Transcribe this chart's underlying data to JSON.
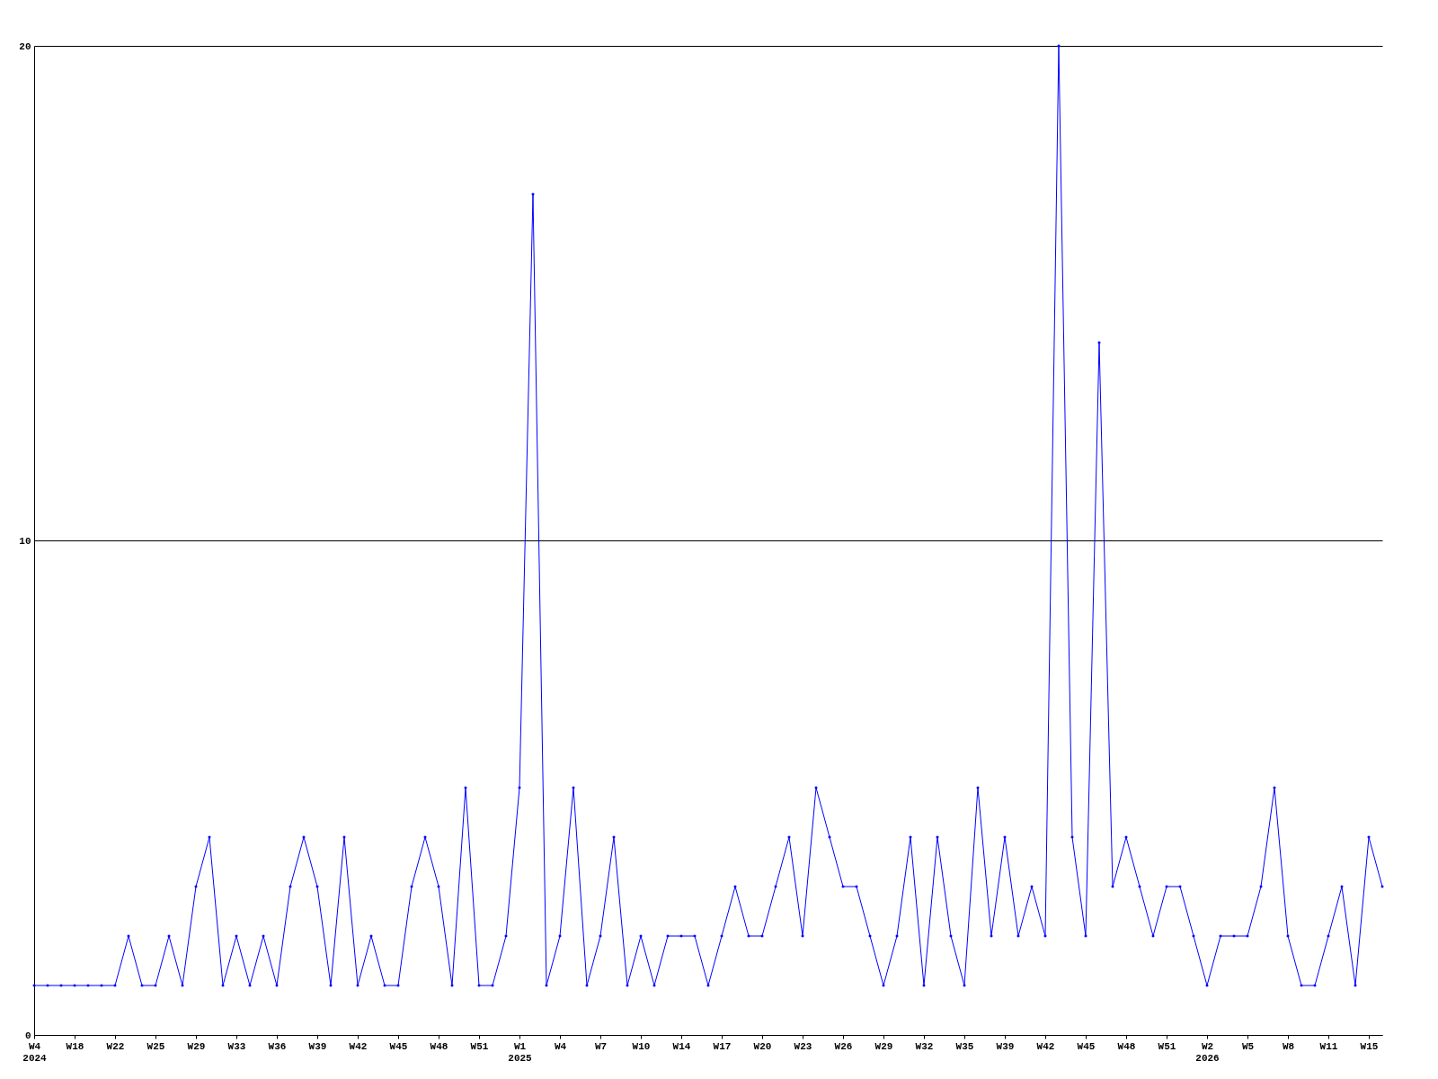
{
  "chart_data": {
    "type": "line",
    "categories": [
      "W4\n2024",
      null,
      null,
      "W18",
      null,
      null,
      "W22",
      null,
      null,
      "W25",
      null,
      null,
      "W29",
      null,
      null,
      "W33",
      null,
      null,
      "W36",
      null,
      null,
      "W39",
      null,
      null,
      "W42",
      null,
      null,
      "W45",
      null,
      null,
      "W48",
      null,
      null,
      "W51",
      null,
      null,
      "W1\n2025",
      null,
      null,
      "W4",
      null,
      null,
      "W7",
      null,
      null,
      "W10",
      null,
      null,
      "W14",
      null,
      null,
      "W17",
      null,
      null,
      "W20",
      null,
      null,
      "W23",
      null,
      null,
      "W26",
      null,
      null,
      "W29",
      null,
      null,
      "W32",
      null,
      null,
      "W35",
      null,
      null,
      "W39",
      null,
      null,
      "W42",
      null,
      null,
      "W45",
      null,
      null,
      "W48",
      null,
      null,
      "W51",
      null,
      null,
      "W2\n2026",
      null,
      null,
      "W5",
      null,
      null,
      "W8",
      null,
      null,
      "W11",
      null,
      null,
      "W15",
      null
    ],
    "series": [
      {
        "color": "#0000ff",
        "values": [
          1,
          1,
          1,
          1,
          1,
          1,
          1,
          2,
          1,
          1,
          2,
          1,
          3,
          4,
          1,
          2,
          1,
          2,
          1,
          3,
          4,
          3,
          1,
          4,
          1,
          2,
          1,
          1,
          3,
          4,
          3,
          1,
          5,
          1,
          1,
          2,
          5,
          17,
          1,
          2,
          5,
          1,
          2,
          4,
          1,
          2,
          1,
          2,
          2,
          2,
          1,
          2,
          3,
          2,
          2,
          3,
          4,
          2,
          5,
          4,
          3,
          3,
          2,
          1,
          2,
          4,
          1,
          4,
          2,
          1,
          5,
          2,
          4,
          2,
          3,
          2,
          20,
          4,
          2,
          14,
          3,
          4,
          3,
          2,
          3,
          3,
          2,
          1,
          2,
          2,
          2,
          3,
          5,
          2,
          1,
          1,
          2,
          3,
          1,
          4,
          3
        ]
      }
    ],
    "ylim": [
      0,
      20
    ],
    "yticks": [
      0,
      10,
      20
    ],
    "grid": "y",
    "marker": "diamond",
    "line_style": "solid"
  }
}
